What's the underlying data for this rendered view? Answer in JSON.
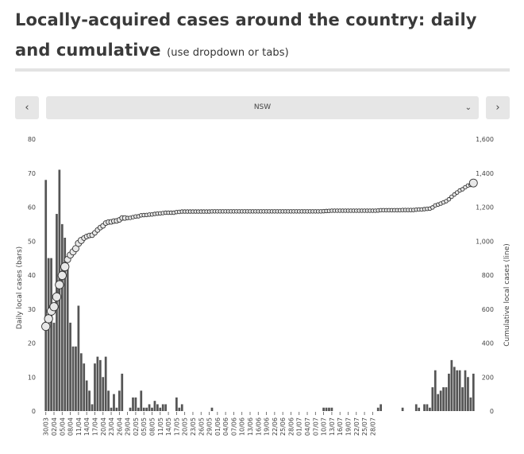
{
  "header": {
    "title": "Locally-acquired cases around the country: daily and cumulative",
    "subtitle": "(use dropdown or tabs)"
  },
  "controls": {
    "prev_label": "‹",
    "next_label": "›",
    "dropdown_value": "NSW",
    "dropdown_icon": "chevron-down-icon"
  },
  "chart_data": {
    "type": "bar",
    "ylabel": "Daily local cases (bars)",
    "y2label": "Cumulative local cases (line)",
    "ylim": [
      0,
      80
    ],
    "y2lim": [
      0,
      1600
    ],
    "yticks": [
      "0",
      "10",
      "20",
      "30",
      "40",
      "50",
      "60",
      "70",
      "80"
    ],
    "y2ticks": [
      "0",
      "200",
      "400",
      "600",
      "800",
      "1,000",
      "1,200",
      "1,400",
      "1,600"
    ],
    "xticks": [
      "30/03",
      "02/04",
      "05/04",
      "08/04",
      "11/04",
      "14/04",
      "17/04",
      "20/04",
      "23/04",
      "26/04",
      "29/04",
      "02/05",
      "05/05",
      "08/05",
      "11/05",
      "14/05",
      "17/05",
      "20/05",
      "23/05",
      "26/05",
      "29/05",
      "01/06",
      "04/06",
      "07/06",
      "10/06",
      "13/06",
      "16/06",
      "19/06",
      "22/06",
      "25/06",
      "28/06",
      "01/07",
      "04/07",
      "07/07",
      "10/07",
      "13/07",
      "16/07",
      "19/07",
      "22/07",
      "25/07",
      "28/07"
    ],
    "grid": false,
    "bar_color": "#555555",
    "line_color": "#666666",
    "marker_fill": "#e8e8e8",
    "series": [
      {
        "type": "bar",
        "values": [
          68,
          45,
          45,
          26,
          58,
          71,
          55,
          51,
          43,
          26,
          19,
          19,
          31,
          17,
          14,
          9,
          6,
          2,
          14,
          16,
          15,
          10,
          16,
          6,
          1,
          5,
          1,
          6,
          11,
          0,
          0,
          1,
          4,
          4,
          1,
          6,
          1,
          1,
          2,
          1,
          3,
          2,
          1,
          2,
          2,
          0,
          0,
          0,
          4,
          1,
          2,
          0,
          0,
          0,
          0,
          0,
          0,
          0,
          0,
          0,
          0,
          1,
          0,
          0,
          0,
          0,
          0,
          0,
          0,
          0,
          0,
          0,
          0,
          0,
          0,
          0,
          0,
          0,
          0,
          0,
          0,
          0,
          0,
          0,
          0,
          0,
          0,
          0,
          0,
          0,
          0,
          0,
          0,
          0,
          0,
          0,
          0,
          0,
          0,
          0,
          0,
          0,
          1,
          1,
          1,
          1,
          0,
          0,
          0,
          0,
          0,
          0,
          0,
          0,
          0,
          0,
          0,
          0,
          0,
          0,
          0,
          0,
          1,
          2,
          0,
          0,
          0,
          0,
          0,
          0,
          0,
          1,
          0,
          0,
          0,
          0,
          2,
          1,
          0,
          2,
          2,
          1,
          7,
          12,
          5,
          6,
          7,
          7,
          11,
          15,
          13,
          12,
          12,
          7,
          12,
          10,
          4,
          11
        ]
      },
      {
        "type": "line",
        "values": [
          498,
          543,
          588,
          614,
          672,
          743,
          798,
          849,
          892,
          918,
          937,
          956,
          987,
          1004,
          1018,
          1027,
          1033,
          1035,
          1049,
          1065,
          1080,
          1090,
          1106,
          1112,
          1113,
          1118,
          1119,
          1125,
          1136,
          1136,
          1136,
          1137,
          1141,
          1145,
          1146,
          1152,
          1153,
          1154,
          1156,
          1157,
          1160,
          1162,
          1163,
          1165,
          1167,
          1167,
          1167,
          1167,
          1171,
          1172,
          1174,
          1174,
          1174,
          1174,
          1174,
          1174,
          1174,
          1174,
          1174,
          1174,
          1174,
          1175,
          1175,
          1175,
          1175,
          1175,
          1175,
          1175,
          1175,
          1175,
          1175,
          1175,
          1175,
          1175,
          1175,
          1175,
          1175,
          1175,
          1175,
          1175,
          1175,
          1175,
          1175,
          1175,
          1175,
          1175,
          1175,
          1175,
          1175,
          1175,
          1175,
          1175,
          1175,
          1175,
          1175,
          1175,
          1175,
          1175,
          1175,
          1175,
          1175,
          1175,
          1176,
          1177,
          1178,
          1179,
          1179,
          1179,
          1179,
          1179,
          1179,
          1179,
          1179,
          1179,
          1179,
          1179,
          1179,
          1179,
          1179,
          1179,
          1179,
          1179,
          1180,
          1182,
          1182,
          1182,
          1182,
          1182,
          1182,
          1182,
          1182,
          1183,
          1183,
          1183,
          1183,
          1183,
          1185,
          1186,
          1186,
          1188,
          1190,
          1191,
          1198,
          1210,
          1215,
          1221,
          1228,
          1235,
          1246,
          1261,
          1274,
          1286,
          1298,
          1305,
          1317,
          1327,
          1331,
          1342
        ]
      }
    ]
  }
}
